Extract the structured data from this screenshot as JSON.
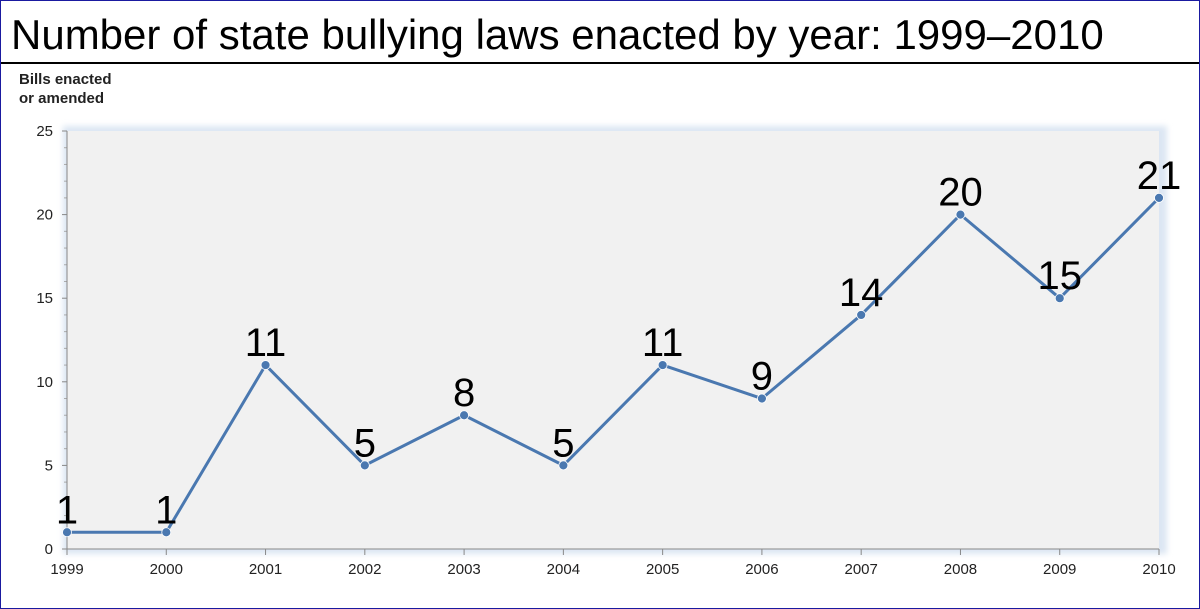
{
  "chart_data": {
    "type": "line",
    "title": "Number of state bullying laws enacted by year: 1999–2010",
    "ylabel": "Bills enacted or amended",
    "ylabel_lines": [
      "Bills enacted",
      "or amended"
    ],
    "xlabel": "",
    "categories": [
      "1999",
      "2000",
      "2001",
      "2002",
      "2003",
      "2004",
      "2005",
      "2006",
      "2007",
      "2008",
      "2009",
      "2010"
    ],
    "series": [
      {
        "name": "Bills enacted or amended",
        "values": [
          1,
          1,
          11,
          5,
          8,
          5,
          11,
          9,
          14,
          20,
          15,
          21
        ],
        "color": "#4a78b0"
      }
    ],
    "ylim": [
      0,
      25
    ],
    "yticks": [
      0,
      5,
      10,
      15,
      20,
      25
    ],
    "grid": false,
    "legend": "none",
    "plot_background": "#f1f1f1"
  }
}
